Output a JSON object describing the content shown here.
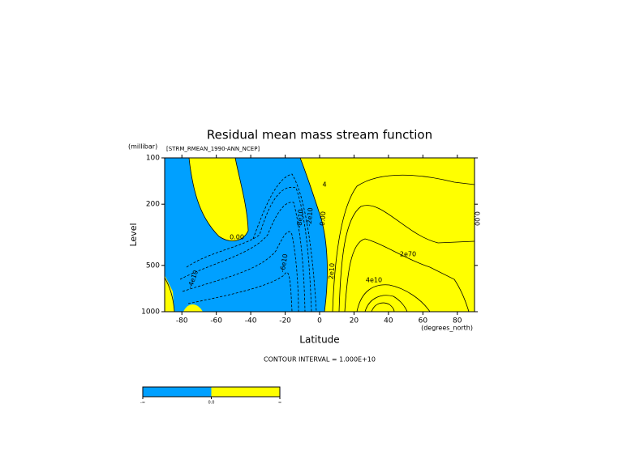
{
  "chart_data": {
    "type": "contour",
    "title": "Residual mean mass stream function",
    "subtitle": "[STRM_RMEAN_1990-ANN_NCEP]",
    "xlabel": "Latitude",
    "xunit": "(degrees_north)",
    "ylabel": "Level",
    "yunit": "(millibar)",
    "xlim": [
      -90,
      90
    ],
    "xticks": [
      -80,
      -60,
      -40,
      -20,
      0,
      20,
      40,
      60,
      80
    ],
    "ylim": [
      1000,
      100
    ],
    "yticks": [
      100,
      200,
      500,
      1000
    ],
    "ylog": true,
    "contour_labels": [
      "0.00",
      "4",
      "-4e10",
      "-6e10",
      "-8e10",
      "-2e10",
      "0.00",
      "2e10",
      "2e70",
      "4e10",
      "0.00"
    ],
    "footer": "CONTOUR INTERVAL = 1.000E+10",
    "colorbar": {
      "colors": [
        "#00a0ff",
        "#ffff00"
      ],
      "labels": [
        "-∞",
        "0.0",
        "∞"
      ]
    }
  }
}
